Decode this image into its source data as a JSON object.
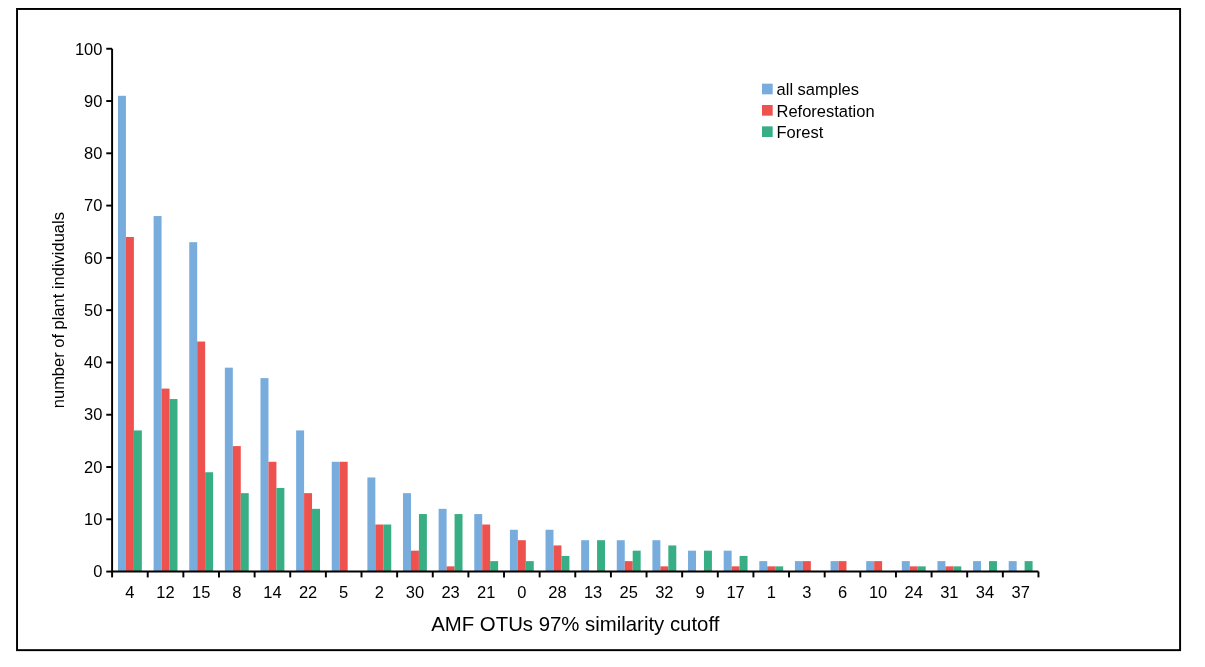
{
  "chart_data": {
    "type": "bar",
    "xlabel": "AMF OTUs 97% similarity cutoff",
    "ylabel": "number of plant individuals",
    "categories": [
      "4",
      "12",
      "15",
      "8",
      "14",
      "22",
      "5",
      "2",
      "30",
      "23",
      "21",
      "0",
      "28",
      "13",
      "25",
      "32",
      "9",
      "17",
      "1",
      "3",
      "6",
      "10",
      "24",
      "31",
      "34",
      "37"
    ],
    "series": [
      {
        "name": "all samples",
        "color": "#77acdd",
        "values": [
          91,
          68,
          63,
          39,
          37,
          27,
          21,
          18,
          15,
          12,
          11,
          8,
          8,
          6,
          6,
          6,
          4,
          4,
          2,
          2,
          2,
          2,
          2,
          2,
          2,
          2
        ]
      },
      {
        "name": "Reforestation",
        "color": "#ee524f",
        "values": [
          64,
          35,
          44,
          24,
          21,
          15,
          21,
          9,
          4,
          1,
          9,
          6,
          5,
          0,
          2,
          1,
          0,
          1,
          1,
          2,
          2,
          2,
          1,
          1,
          0,
          0
        ]
      },
      {
        "name": "Forest",
        "color": "#38ae85",
        "values": [
          27,
          33,
          19,
          15,
          16,
          12,
          0,
          9,
          11,
          11,
          2,
          2,
          3,
          6,
          4,
          5,
          4,
          3,
          1,
          0,
          0,
          0,
          1,
          1,
          2,
          2
        ]
      }
    ],
    "ylim": [
      0,
      100
    ],
    "yticks": [
      0,
      10,
      20,
      30,
      40,
      50,
      60,
      70,
      80,
      90,
      100
    ],
    "grid": false,
    "legend": "top right"
  }
}
